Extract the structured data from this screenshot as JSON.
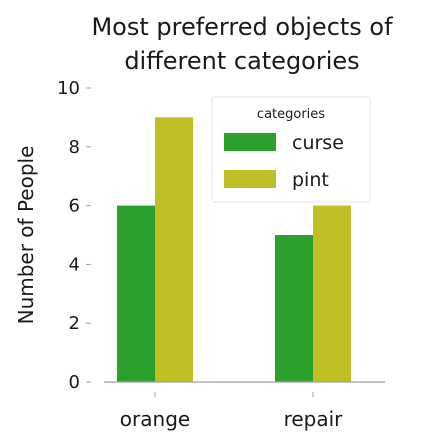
{
  "chart_data": {
    "type": "bar",
    "title_lines": [
      "Most preferred objects of",
      "different categories"
    ],
    "ylabel": "Number of People",
    "xlabel": "",
    "categories": [
      "orange",
      "repair"
    ],
    "series": [
      {
        "name": "curse",
        "values": [
          6,
          5
        ],
        "color": "#2ca02c"
      },
      {
        "name": "pint",
        "values": [
          9,
          6
        ],
        "color": "#bfbf26"
      }
    ],
    "ylim": [
      0,
      10
    ],
    "yticks": [
      "0",
      "2",
      "4",
      "6",
      "8",
      "10"
    ],
    "legend": {
      "title": "categories",
      "placement": "top-right"
    },
    "grid": false
  }
}
